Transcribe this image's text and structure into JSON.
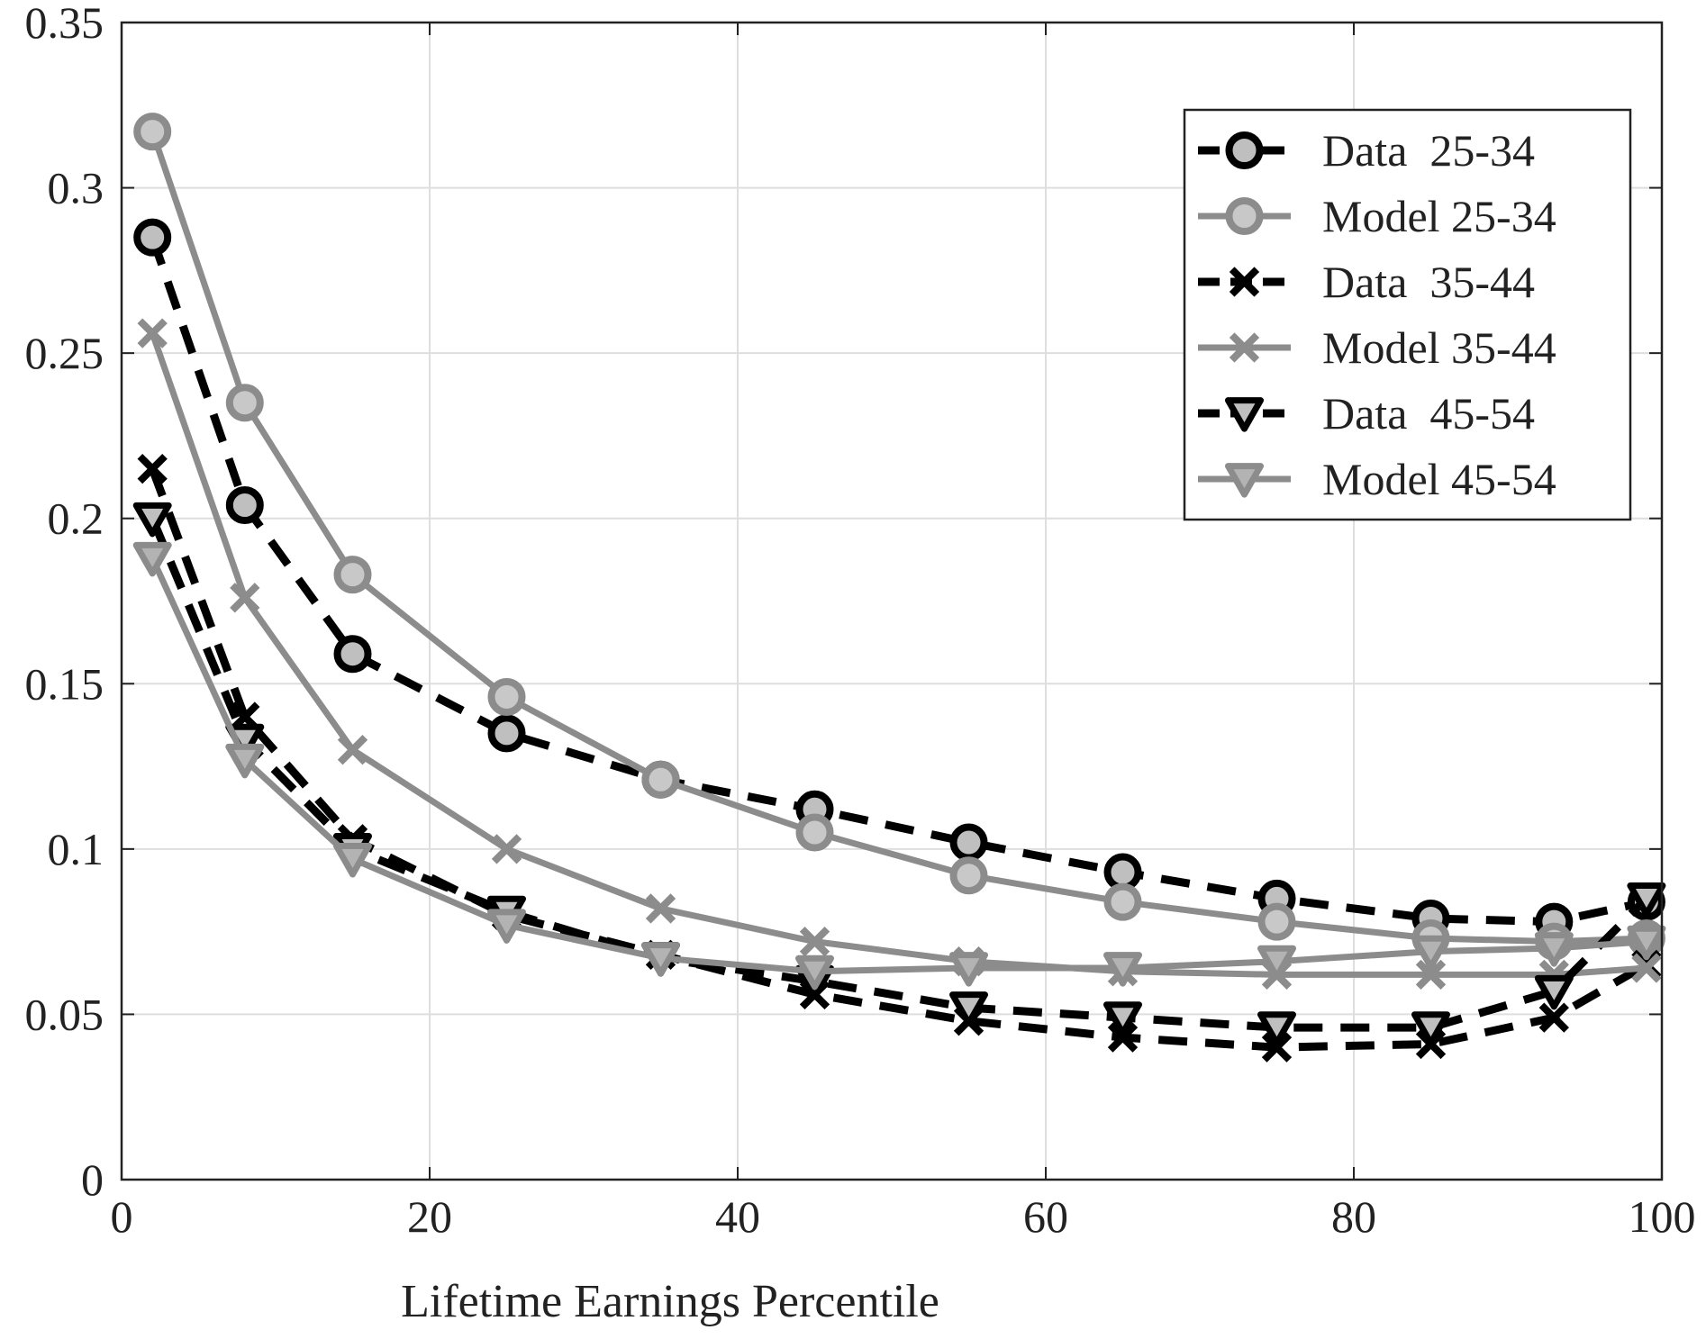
{
  "chart_data": {
    "type": "line",
    "title": "",
    "xlabel": "Lifetime Earnings Percentile",
    "ylabel": "",
    "xlim": [
      0,
      100
    ],
    "ylim": [
      0,
      0.35
    ],
    "xticks": [
      0,
      20,
      40,
      60,
      80,
      100
    ],
    "yticks": [
      0,
      0.05,
      0.1,
      0.15,
      0.2,
      0.25,
      0.3,
      0.35
    ],
    "xtick_labels": [
      "0",
      "20",
      "40",
      "60",
      "80",
      "100"
    ],
    "ytick_labels": [
      "0",
      "0.05",
      "0.1",
      "0.15",
      "0.2",
      "0.25",
      "0.3",
      "0.35"
    ],
    "grid": true,
    "legend_position": "top-right",
    "x": [
      2,
      8,
      15,
      25,
      35,
      45,
      55,
      65,
      75,
      85,
      93,
      99
    ],
    "series": [
      {
        "name": "Data  25-34",
        "color": "#000000",
        "marker_fill": "#bfbfbf",
        "dash": "dashed",
        "marker": "circle",
        "values": [
          0.285,
          0.204,
          0.159,
          0.135,
          0.121,
          0.112,
          0.102,
          0.093,
          0.085,
          0.079,
          0.078,
          0.084
        ]
      },
      {
        "name": "Model 25-34",
        "color": "#8c8c8c",
        "marker_fill": "#c8c8c8",
        "dash": "solid",
        "marker": "circle",
        "values": [
          0.317,
          0.235,
          0.183,
          0.146,
          0.121,
          0.105,
          0.092,
          0.084,
          0.078,
          0.073,
          0.072,
          0.073
        ]
      },
      {
        "name": "Data  35-44",
        "color": "#000000",
        "marker_fill": "#000000",
        "dash": "dashed",
        "marker": "x",
        "values": [
          0.215,
          0.14,
          0.103,
          0.08,
          0.068,
          0.056,
          0.048,
          0.043,
          0.04,
          0.041,
          0.049,
          0.065
        ]
      },
      {
        "name": "Model 35-44",
        "color": "#8c8c8c",
        "marker_fill": "#8c8c8c",
        "dash": "solid",
        "marker": "x",
        "values": [
          0.256,
          0.176,
          0.13,
          0.1,
          0.082,
          0.072,
          0.066,
          0.063,
          0.062,
          0.062,
          0.062,
          0.064
        ]
      },
      {
        "name": "Data  45-54",
        "color": "#000000",
        "marker_fill": "#bfbfbf",
        "dash": "dashed",
        "marker": "triangle-down",
        "values": [
          0.2,
          0.133,
          0.1,
          0.081,
          0.067,
          0.06,
          0.052,
          0.049,
          0.046,
          0.046,
          0.057,
          0.085
        ]
      },
      {
        "name": "Model 45-54",
        "color": "#8c8c8c",
        "marker_fill": "#b3b3b3",
        "dash": "solid",
        "marker": "triangle-down",
        "values": [
          0.188,
          0.127,
          0.097,
          0.077,
          0.067,
          0.063,
          0.064,
          0.064,
          0.066,
          0.069,
          0.07,
          0.072
        ]
      }
    ]
  }
}
